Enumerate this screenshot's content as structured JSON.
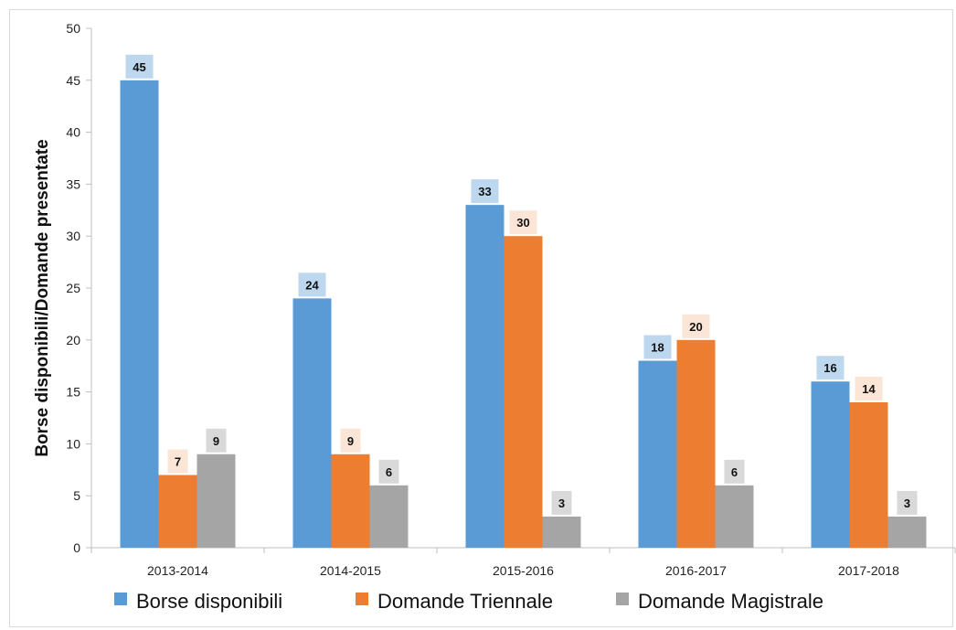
{
  "chart_data": {
    "type": "bar",
    "categories": [
      "2013-2014",
      "2014-2015",
      "2015-2016",
      "2016-2017",
      "2017-2018"
    ],
    "series": [
      {
        "name": "Borse disponibili",
        "values": [
          45,
          24,
          33,
          18,
          16
        ],
        "color": "#5b9bd5",
        "label_bg": "#bdd7ee"
      },
      {
        "name": "Domande Triennale",
        "values": [
          7,
          9,
          30,
          20,
          14
        ],
        "color": "#ed7d31",
        "label_bg": "#fbe5d6"
      },
      {
        "name": "Domande Magistrale",
        "values": [
          9,
          6,
          3,
          6,
          3
        ],
        "color": "#a5a5a5",
        "label_bg": "#d9d9d9"
      }
    ],
    "xlabel": "",
    "ylabel": "Borse disponibili/Domande presentate",
    "ylim": [
      0,
      50
    ],
    "yticks": [
      0,
      5,
      10,
      15,
      20,
      25,
      30,
      35,
      40,
      45,
      50
    ],
    "grid": false,
    "legend": "bottom",
    "data_labels": true
  }
}
